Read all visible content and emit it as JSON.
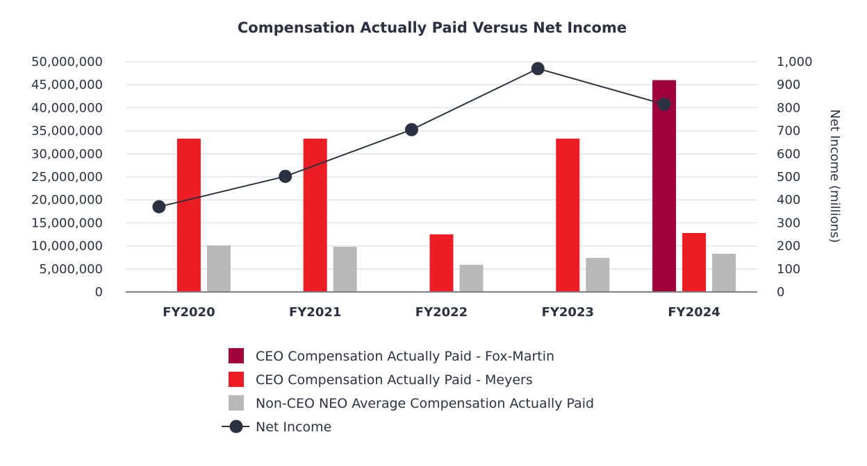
{
  "chart_data": {
    "type": "bar",
    "title": "Compensation Actually Paid Versus Net Income",
    "categories": [
      "FY2020",
      "FY2021",
      "FY2022",
      "FY2023",
      "FY2024"
    ],
    "y_left": {
      "range": [
        0,
        50000000
      ],
      "ticks": [
        0,
        5000000,
        10000000,
        15000000,
        20000000,
        25000000,
        30000000,
        35000000,
        40000000,
        45000000,
        50000000
      ],
      "tick_labels": [
        "0",
        "5,000,000",
        "10,000,000",
        "15,000,000",
        "20,000,000",
        "25,000,000",
        "30,000,000",
        "35,000,000",
        "40,000,000",
        "45,000,000",
        "50,000,000"
      ]
    },
    "y_right": {
      "label": "Net Income (millions)",
      "range": [
        0,
        1000
      ],
      "ticks": [
        0,
        100,
        200,
        300,
        400,
        500,
        600,
        700,
        800,
        900,
        1000
      ],
      "tick_labels": [
        "0",
        "100",
        "200",
        "300",
        "400",
        "500",
        "600",
        "700",
        "800",
        "900",
        "1,000"
      ]
    },
    "series": [
      {
        "name": "CEO Compensation Actually Paid - Fox-Martin",
        "kind": "bar",
        "axis": "left",
        "color": "#a0003a",
        "values": [
          null,
          null,
          null,
          null,
          46000000
        ]
      },
      {
        "name": "CEO Compensation Actually Paid - Meyers",
        "kind": "bar",
        "axis": "left",
        "color": "#ee1c24",
        "values": [
          33300000,
          33300000,
          12500000,
          33300000,
          12800000
        ]
      },
      {
        "name": "Non-CEO NEO Average Compensation Actually Paid",
        "kind": "bar",
        "axis": "left",
        "color": "#b8b8b8",
        "values": [
          10100000,
          9800000,
          5900000,
          7400000,
          8300000
        ]
      },
      {
        "name": "Net Income",
        "kind": "line",
        "axis": "right",
        "color": "#2b3140",
        "values": [
          370,
          502,
          705,
          970,
          815
        ]
      }
    ],
    "legend_position": "bottom"
  }
}
